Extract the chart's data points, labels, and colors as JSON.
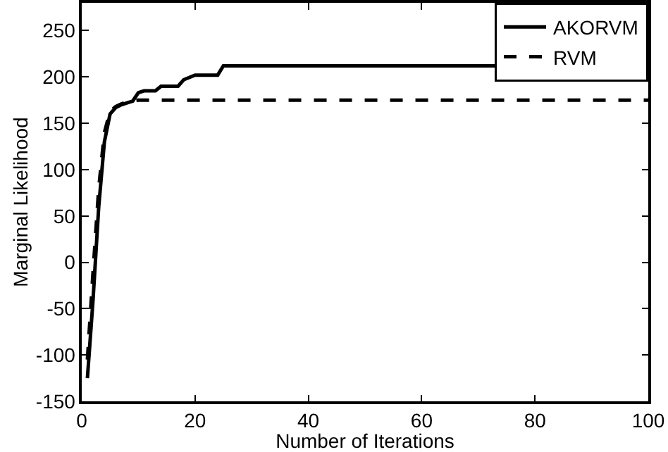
{
  "chart_data": {
    "type": "line",
    "xlabel": "Number of Iterations",
    "ylabel": "Marginal Likelihood",
    "xlim": [
      0,
      100
    ],
    "xticks": [
      0,
      20,
      40,
      60,
      80,
      100
    ],
    "ylim": [
      -150,
      280
    ],
    "yticks": [
      -150,
      -100,
      -50,
      0,
      50,
      100,
      150,
      200,
      250
    ],
    "grid": false,
    "legend": "top right",
    "marker": "none",
    "series": [
      {
        "name": "AKORVM",
        "color": "#000000",
        "line_style": "solid",
        "x": [
          1,
          2,
          3,
          4,
          5,
          6,
          7,
          8,
          9,
          10,
          11,
          13,
          14,
          17,
          18,
          20,
          24,
          25,
          100
        ],
        "values": [
          -125,
          -40,
          60,
          130,
          160,
          167,
          170,
          172,
          174,
          183,
          185,
          185,
          190,
          190,
          197,
          202,
          202,
          212,
          212
        ]
      },
      {
        "name": "RVM",
        "color": "#000000",
        "line_style": "dashed",
        "x": [
          1,
          2,
          3,
          4,
          5,
          6,
          7,
          8,
          9,
          10,
          100
        ],
        "values": [
          -105,
          -10,
          80,
          140,
          163,
          168,
          171,
          173,
          174,
          175,
          175
        ]
      }
    ]
  }
}
